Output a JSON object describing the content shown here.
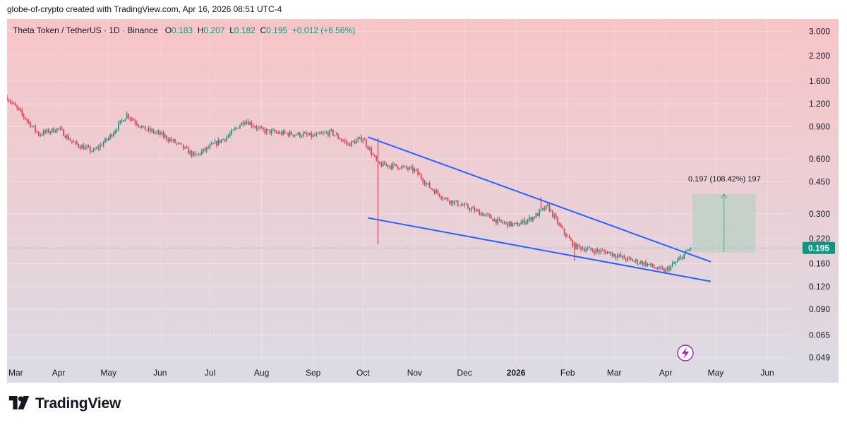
{
  "attribution": "globe-of-crypto created with TradingView.com, Apr 16, 2026 08:51 UTC-4",
  "legend": {
    "symbol": "Theta Token / TetherUS · 1D · Binance",
    "o_label": "O",
    "o_value": "0.183",
    "h_label": "H",
    "h_value": "0.207",
    "l_label": "L",
    "l_value": "0.182",
    "c_label": "C",
    "c_value": "0.195",
    "change": "+0.012 (+6.56%)"
  },
  "brand": {
    "name": "TradingView"
  },
  "colors": {
    "up": "#089981",
    "down": "#f23645",
    "trendline": "#2962ff",
    "bg_top": "#f7c6c9",
    "bg_bottom": "#d9d9e3",
    "measure_fill": "#b9d2c6",
    "measure_arrow": "#4caf50"
  },
  "chart_data": {
    "type": "candlestick",
    "yscale": "log",
    "ylim": [
      0.045,
      3.5
    ],
    "x_ticks": [
      "Mar",
      "Apr",
      "May",
      "Jun",
      "Jul",
      "Aug",
      "Sep",
      "Oct",
      "Nov",
      "Dec",
      "2026",
      "Feb",
      "Mar",
      "Apr",
      "May",
      "Jun"
    ],
    "x_range": [
      "2025-03-01",
      "2026-06-15"
    ],
    "y_ticks": [
      "3.000",
      "2.200",
      "1.600",
      "1.200",
      "0.900",
      "0.600",
      "0.450",
      "0.300",
      "0.220",
      "0.160",
      "0.120",
      "0.090",
      "0.065",
      "0.049"
    ],
    "last_price": "0.195",
    "price_path": [
      [
        "2025-03-01",
        1.3
      ],
      [
        "2025-03-10",
        1.05
      ],
      [
        "2025-03-20",
        0.82
      ],
      [
        "2025-04-01",
        0.88
      ],
      [
        "2025-04-10",
        0.73
      ],
      [
        "2025-04-22",
        0.66
      ],
      [
        "2025-05-01",
        0.78
      ],
      [
        "2025-05-12",
        1.05
      ],
      [
        "2025-05-22",
        0.88
      ],
      [
        "2025-06-01",
        0.82
      ],
      [
        "2025-06-12",
        0.72
      ],
      [
        "2025-06-22",
        0.62
      ],
      [
        "2025-07-01",
        0.7
      ],
      [
        "2025-07-12",
        0.8
      ],
      [
        "2025-07-22",
        0.98
      ],
      [
        "2025-08-01",
        0.86
      ],
      [
        "2025-08-12",
        0.83
      ],
      [
        "2025-08-22",
        0.82
      ],
      [
        "2025-09-01",
        0.8
      ],
      [
        "2025-09-12",
        0.84
      ],
      [
        "2025-09-22",
        0.72
      ],
      [
        "2025-10-01",
        0.78
      ],
      [
        "2025-10-10",
        0.56
      ],
      [
        "2025-10-20",
        0.55
      ],
      [
        "2025-11-01",
        0.52
      ],
      [
        "2025-11-10",
        0.42
      ],
      [
        "2025-11-20",
        0.36
      ],
      [
        "2025-12-01",
        0.33
      ],
      [
        "2025-12-12",
        0.3
      ],
      [
        "2025-12-22",
        0.27
      ],
      [
        "2026-01-01",
        0.26
      ],
      [
        "2026-01-12",
        0.29
      ],
      [
        "2026-01-20",
        0.33
      ],
      [
        "2026-01-28",
        0.25
      ],
      [
        "2026-02-05",
        0.2
      ],
      [
        "2026-02-15",
        0.19
      ],
      [
        "2026-02-25",
        0.185
      ],
      [
        "2026-03-08",
        0.17
      ],
      [
        "2026-03-20",
        0.16
      ],
      [
        "2026-03-31",
        0.145
      ],
      [
        "2026-04-08",
        0.165
      ],
      [
        "2026-04-16",
        0.195
      ]
    ],
    "wicks": [
      {
        "date": "2025-10-10",
        "high": 0.78,
        "low": 0.205
      },
      {
        "date": "2026-01-16",
        "high": 0.37,
        "low": 0.32
      },
      {
        "date": "2026-02-05",
        "high": 0.21,
        "low": 0.165
      }
    ],
    "trendlines": [
      {
        "name": "upper",
        "from": [
          "2025-10-04",
          0.79
        ],
        "to": [
          "2026-04-28",
          0.164
        ]
      },
      {
        "name": "lower",
        "from": [
          "2025-10-04",
          0.285
        ],
        "to": [
          "2026-04-28",
          0.128
        ]
      }
    ],
    "measure": {
      "label": "0.197 (108.42%) 197",
      "from_date": "2026-04-17",
      "to_date": "2026-05-25",
      "low": 0.185,
      "high": 0.385
    }
  }
}
